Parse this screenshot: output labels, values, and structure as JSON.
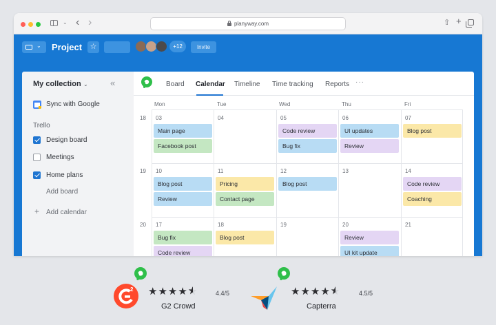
{
  "browser": {
    "url": "planyway.com"
  },
  "header": {
    "project_title": "Project",
    "extra_members": "+12",
    "invite_label": "Invite"
  },
  "sidebar": {
    "title": "My collection",
    "sync_label": "Sync with Google",
    "section": "Trello",
    "boards": [
      {
        "label": "Design board",
        "checked": true
      },
      {
        "label": "Meetings",
        "checked": false
      },
      {
        "label": "Home plans",
        "checked": true
      }
    ],
    "add_board": "Add board",
    "add_calendar": "Add calendar"
  },
  "tabs": [
    {
      "label": "Board",
      "active": false
    },
    {
      "label": "Calendar",
      "active": true
    },
    {
      "label": "Timeline",
      "active": false
    },
    {
      "label": "Time tracking",
      "active": false
    },
    {
      "label": "Reports",
      "active": false
    }
  ],
  "calendar": {
    "days": [
      "Mon",
      "Tue",
      "Wed",
      "Thu",
      "Fri"
    ],
    "weeks": [
      {
        "number": "18",
        "dates": [
          "03",
          "04",
          "05",
          "06",
          "07"
        ],
        "cards": [
          [
            {
              "label": "Main page",
              "color": "blue"
            },
            {
              "label": "Facebook post",
              "color": "green"
            }
          ],
          [],
          [
            {
              "label": "Code review",
              "color": "purple"
            },
            {
              "label": "Bug fix",
              "color": "blue"
            }
          ],
          [
            {
              "label": "UI updates",
              "color": "blue"
            },
            {
              "label": "Review",
              "color": "purple"
            }
          ],
          [
            {
              "label": "Blog post",
              "color": "yellow"
            }
          ]
        ]
      },
      {
        "number": "19",
        "dates": [
          "10",
          "11",
          "12",
          "13",
          "14"
        ],
        "cards": [
          [
            {
              "label": "Blog post",
              "color": "blue"
            },
            {
              "label": "Review",
              "color": "blue"
            }
          ],
          [
            {
              "label": "Pricing",
              "color": "yellow"
            },
            {
              "label": "Contact page",
              "color": "green"
            }
          ],
          [
            {
              "label": "Blog post",
              "color": "blue"
            }
          ],
          [],
          [
            {
              "label": "Code review",
              "color": "purple"
            },
            {
              "label": "Coaching",
              "color": "yellow"
            }
          ]
        ]
      },
      {
        "number": "20",
        "dates": [
          "17",
          "18",
          "19",
          "20",
          "21"
        ],
        "cards": [
          [
            {
              "label": "Bug fix",
              "color": "green"
            },
            {
              "label": "Code review",
              "color": "purple"
            }
          ],
          [
            {
              "label": "Blog post",
              "color": "yellow"
            }
          ],
          [],
          [
            {
              "label": "Review",
              "color": "purple"
            },
            {
              "label": "UI kit update",
              "color": "blue"
            }
          ],
          []
        ]
      }
    ]
  },
  "ratings": [
    {
      "name": "G2 Crowd",
      "score": "4.4/5",
      "stars": 4.5
    },
    {
      "name": "Capterra",
      "score": "4.5/5",
      "stars": 4.5
    }
  ],
  "colors": {
    "header_blue": "#1778d3",
    "accent": "#1f75d1",
    "planyway_green": "#2fbf4a",
    "g2_red": "#ff492c",
    "capterra_blue": "#044d80"
  }
}
